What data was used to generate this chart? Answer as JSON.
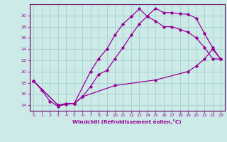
{
  "background_color": "#cceae7",
  "plot_bg_color": "#cceae7",
  "outer_bg": "#cceae7",
  "grid_color": "#aad4d0",
  "line_color": "#990099",
  "spine_color": "#660066",
  "xlabel": "Windchill (Refroidissement éolien,°C)",
  "xlim": [
    -0.5,
    23.5
  ],
  "ylim": [
    13.0,
    32.0
  ],
  "xticks": [
    0,
    1,
    2,
    3,
    4,
    5,
    6,
    7,
    8,
    9,
    10,
    11,
    12,
    13,
    14,
    15,
    16,
    17,
    18,
    19,
    20,
    21,
    22,
    23
  ],
  "yticks": [
    14,
    16,
    18,
    20,
    22,
    24,
    26,
    28,
    30
  ],
  "line1_x": [
    0,
    1,
    2,
    3,
    4,
    5,
    6,
    7,
    8,
    9,
    10,
    11,
    12,
    13,
    14,
    15,
    16,
    17,
    18,
    19,
    20,
    21,
    22,
    23
  ],
  "line1_y": [
    18.3,
    16.7,
    14.7,
    13.8,
    14.2,
    14.3,
    15.5,
    17.3,
    19.5,
    20.2,
    22.3,
    24.3,
    26.5,
    28.5,
    29.9,
    31.3,
    30.5,
    30.5,
    30.3,
    30.2,
    29.5,
    26.8,
    24.3,
    22.2
  ],
  "line2_x": [
    0,
    3,
    4,
    5,
    7,
    8,
    9,
    10,
    11,
    12,
    13,
    14,
    15,
    16,
    17,
    18,
    19,
    20,
    21,
    22,
    23
  ],
  "line2_y": [
    18.3,
    14.0,
    14.3,
    14.3,
    20.0,
    22.3,
    24.0,
    26.5,
    28.5,
    29.8,
    31.2,
    29.8,
    29.0,
    28.0,
    28.0,
    27.5,
    27.0,
    26.0,
    24.3,
    22.3,
    22.2
  ],
  "line3_x": [
    0,
    3,
    5,
    6,
    10,
    15,
    19,
    20,
    21,
    22,
    23
  ],
  "line3_y": [
    18.3,
    14.0,
    14.3,
    15.5,
    17.5,
    18.5,
    20.0,
    21.0,
    22.2,
    24.0,
    22.2
  ]
}
